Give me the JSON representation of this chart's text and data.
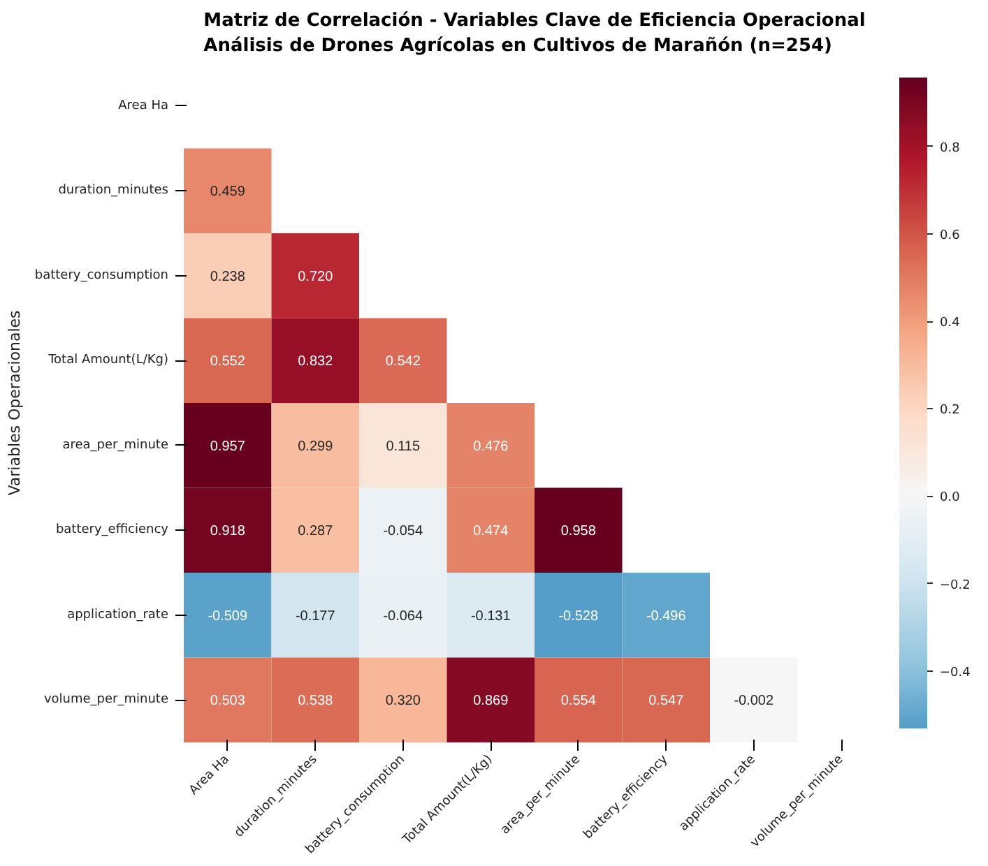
{
  "chart_data": {
    "type": "heatmap",
    "title": "Matriz de Correlación - Variables Clave de Eficiencia Operacional\nAnálisis de Drones Agrícolas en Cultivos de Marañón (n=254)",
    "ylabel": "Variables Operacionales",
    "categories": [
      "Area Ha",
      "duration_minutes",
      "battery_consumption",
      "Total Amount(L/Kg)",
      "area_per_minute",
      "battery_efficiency",
      "application_rate",
      "volume_per_minute"
    ],
    "y_categories": [
      "Area Ha",
      "duration_minutes",
      "battery_consumption",
      "Total Amount(L/Kg)",
      "area_per_minute",
      "battery_efficiency",
      "application_rate",
      "volume_per_minute"
    ],
    "cells": [
      [
        null,
        null,
        null,
        null,
        null,
        null,
        null,
        null
      ],
      [
        0.459,
        null,
        null,
        null,
        null,
        null,
        null,
        null
      ],
      [
        0.238,
        0.72,
        null,
        null,
        null,
        null,
        null,
        null
      ],
      [
        0.552,
        0.832,
        0.542,
        null,
        null,
        null,
        null,
        null
      ],
      [
        0.957,
        0.299,
        0.115,
        0.476,
        null,
        null,
        null,
        null
      ],
      [
        0.918,
        0.287,
        -0.054,
        0.474,
        0.958,
        null,
        null,
        null
      ],
      [
        -0.509,
        -0.177,
        -0.064,
        -0.131,
        -0.528,
        -0.496,
        null,
        null
      ],
      [
        0.503,
        0.538,
        0.32,
        0.869,
        0.554,
        0.547,
        -0.002,
        null
      ]
    ],
    "cell_labels": [
      [
        null,
        null,
        null,
        null,
        null,
        null,
        null,
        null
      ],
      [
        "0.459",
        null,
        null,
        null,
        null,
        null,
        null,
        null
      ],
      [
        "0.238",
        "0.720",
        null,
        null,
        null,
        null,
        null,
        null
      ],
      [
        "0.552",
        "0.832",
        "0.542",
        null,
        null,
        null,
        null,
        null
      ],
      [
        "0.957",
        "0.299",
        "0.115",
        "0.476",
        null,
        null,
        null,
        null
      ],
      [
        "0.918",
        "0.287",
        "-0.054",
        "0.474",
        "0.958",
        null,
        null,
        null
      ],
      [
        "-0.509",
        "-0.177",
        "-0.064",
        "-0.131",
        "-0.528",
        "-0.496",
        null,
        null
      ],
      [
        "0.503",
        "0.538",
        "0.320",
        "0.869",
        "0.554",
        "0.547",
        "-0.002",
        null
      ]
    ],
    "data_labels": true,
    "clim": [
      -0.528,
      0.958
    ],
    "cticks": [
      {
        "value": -0.4,
        "label": "−0.4"
      },
      {
        "value": -0.2,
        "label": "−0.2"
      },
      {
        "value": 0.0,
        "label": "0.0"
      },
      0.2,
      0.4,
      0.6,
      0.8
    ]
  }
}
